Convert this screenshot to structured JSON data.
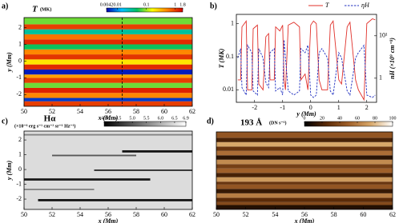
{
  "chart_data": [
    {
      "type": "heatmap",
      "panel": "a)",
      "title": "T",
      "units": "(MK)",
      "xlabel": "x (Mm)",
      "ylabel": "y (Mm)",
      "xlim": [
        50,
        62
      ],
      "xticks": [
        50,
        52,
        54,
        56,
        58,
        60,
        62
      ],
      "ylim": [
        -2.7,
        2.6
      ],
      "yticks": [
        -2,
        -1,
        0,
        1,
        2
      ],
      "clim": [
        0.0042,
        1.8
      ],
      "clog": true,
      "cticks": [
        0.0042,
        0.01,
        0.1,
        1,
        1.8
      ],
      "colormap": [
        "#0000b0",
        "#00c0ff",
        "#00c060",
        "#ffff00",
        "#ff8000",
        "#d00000"
      ],
      "vline": 57,
      "segments": [
        {
          "x": [
            50,
            62
          ],
          "y": [
            -2.7,
            -2.4
          ],
          "value": 1.0
        },
        {
          "x": [
            50,
            62
          ],
          "y": [
            -2.4,
            -2.2
          ],
          "value": 0.006
        },
        {
          "x": [
            50,
            62
          ],
          "y": [
            -2.2,
            -1.9
          ],
          "value": 0.5
        },
        {
          "x": [
            50,
            62
          ],
          "y": [
            -1.9,
            -1.6
          ],
          "value": 1.3
        },
        {
          "x": [
            50,
            62
          ],
          "y": [
            -1.6,
            -1.3
          ],
          "value": 0.08
        },
        {
          "x": [
            50,
            62
          ],
          "y": [
            -1.3,
            -1.0
          ],
          "value": 1.0
        },
        {
          "x": [
            50,
            62
          ],
          "y": [
            -1.0,
            -0.8
          ],
          "value": 0.4
        },
        {
          "x": [
            50,
            62
          ],
          "y": [
            -0.8,
            -0.5
          ],
          "value": 0.005
        },
        {
          "x": [
            50,
            62
          ],
          "y": [
            -0.5,
            -0.2
          ],
          "value": 1.2
        },
        {
          "x": [
            50,
            62
          ],
          "y": [
            -0.2,
            0.1
          ],
          "value": 0.2
        },
        {
          "x": [
            50,
            62
          ],
          "y": [
            0.1,
            0.4
          ],
          "value": 1.1
        },
        {
          "x": [
            50,
            62
          ],
          "y": [
            0.4,
            0.7
          ],
          "value": 0.5
        },
        {
          "x": [
            50,
            62
          ],
          "y": [
            0.7,
            1.0
          ],
          "value": 0.05
        },
        {
          "x": [
            50,
            62
          ],
          "y": [
            1.0,
            1.3
          ],
          "value": 1.2
        },
        {
          "x": [
            50,
            62
          ],
          "y": [
            1.3,
            1.6
          ],
          "value": 0.6
        },
        {
          "x": [
            50,
            62
          ],
          "y": [
            1.6,
            1.9
          ],
          "value": 0.03
        },
        {
          "x": [
            50,
            62
          ],
          "y": [
            1.9,
            2.2
          ],
          "value": 1.0
        },
        {
          "x": [
            50,
            62
          ],
          "y": [
            2.2,
            2.6
          ],
          "value": 0.08
        }
      ]
    },
    {
      "type": "line",
      "panel": "b)",
      "xlabel": "y (Mm)",
      "ylabel": "T (MK)",
      "y2label": "nH (×10⁹ cm⁻³)",
      "legend": "top",
      "xlim": [
        -2.65,
        2.35
      ],
      "xticks": [
        -2,
        -1,
        0,
        1,
        2
      ],
      "ylog": true,
      "ylim": [
        0.0042,
        1.9
      ],
      "yticks": [
        0.01,
        0.1,
        1
      ],
      "y2log": true,
      "y2lim": [
        0.27,
        32
      ],
      "y2ticks": [
        1,
        {
          "value": 10,
          "label": "10¹"
        }
      ],
      "x": [
        -2.6,
        -2.5,
        -2.45,
        -2.3,
        -2.25,
        -2.1,
        -2.05,
        -1.9,
        -1.85,
        -1.7,
        -1.6,
        -1.5,
        -1.45,
        -1.3,
        -1.25,
        -1.1,
        -1.0,
        -0.95,
        -0.9,
        -0.8,
        -0.6,
        -0.4,
        -0.35,
        -0.2,
        -0.1,
        0,
        0.1,
        0.2,
        0.3,
        0.4,
        0.6,
        0.7,
        0.8,
        1.0,
        1.1,
        1.3,
        1.4,
        1.6,
        1.7,
        1.9,
        2.0,
        2.2,
        2.3
      ],
      "series": [
        {
          "name": "T",
          "color": "#e0302a",
          "values": [
            0.02,
            0.02,
            0.8,
            1.2,
            0.01,
            0.01,
            0.7,
            0.9,
            0.015,
            0.01,
            0.4,
            0.5,
            0.02,
            0.02,
            0.8,
            0.6,
            0.9,
            0.02,
            0.01,
            0.9,
            1.1,
            0.8,
            0.02,
            0.03,
            0.01,
            0.9,
            1.2,
            1.0,
            0.02,
            0.01,
            0.01,
            0.9,
            1.2,
            0.02,
            0.015,
            0.8,
            1.1,
            0.02,
            0.01,
            0.005,
            1.0,
            1.4,
            1.3
          ]
        },
        {
          "name": "ηH",
          "color": "#2030c0",
          "axis": "y2",
          "dash": true,
          "values": [
            3,
            5,
            0.6,
            0.4,
            6,
            4,
            0.5,
            0.4,
            5,
            3,
            0.8,
            0.6,
            4,
            5,
            0.5,
            0.6,
            0.4,
            8,
            3,
            0.5,
            0.4,
            0.5,
            5,
            4,
            6,
            0.4,
            0.35,
            0.4,
            4,
            5,
            3,
            0.5,
            0.4,
            4,
            3,
            0.5,
            0.4,
            3,
            4,
            6,
            0.4,
            0.35,
            0.4
          ]
        }
      ]
    },
    {
      "type": "heatmap",
      "panel": "c)",
      "title": "Hα",
      "units": "(×10⁻⁶ erg s⁻¹ cm⁻² sr⁻¹ Hz⁻¹)",
      "xlabel": "x (Mm)",
      "ylabel": "y (Mm)",
      "xlim": [
        50,
        62
      ],
      "xticks": [
        50,
        52,
        54,
        56,
        58,
        60,
        62
      ],
      "ylim": [
        -2.7,
        2.6
      ],
      "yticks": [
        -2,
        -1,
        0,
        1,
        2
      ],
      "clim": [
        4,
        6.9
      ],
      "clog": false,
      "cticks": [
        {
          "value": 4,
          "label": "4.0"
        },
        4.5,
        {
          "value": 5,
          "label": "5.0"
        },
        5.5,
        {
          "value": 6,
          "label": "6.0"
        },
        6.5,
        6.9
      ],
      "colormap": [
        "#000000",
        "#ffffff"
      ],
      "segments": [
        {
          "x": [
            50,
            62
          ],
          "y": [
            -2.7,
            2.6
          ],
          "value": 6.5
        },
        {
          "x": [
            51,
            62
          ],
          "y": [
            -2.15,
            -2.0
          ],
          "value": 4.2
        },
        {
          "x": [
            50,
            59
          ],
          "y": [
            -0.75,
            -0.6
          ],
          "value": 4.3
        },
        {
          "x": [
            55,
            62
          ],
          "y": [
            -0.1,
            0.0
          ],
          "value": 4.5
        },
        {
          "x": [
            52,
            58
          ],
          "y": [
            0.9,
            1.0
          ],
          "value": 5.0
        },
        {
          "x": [
            57,
            62
          ],
          "y": [
            1.15,
            1.3
          ],
          "value": 4.2
        },
        {
          "x": [
            50,
            55
          ],
          "y": [
            -1.4,
            -1.3
          ],
          "value": 5.5
        },
        {
          "x": [
            50,
            62
          ],
          "y": [
            2.3,
            2.4
          ],
          "value": 5.5
        }
      ]
    },
    {
      "type": "heatmap",
      "panel": "d)",
      "title": "193 Å",
      "units": "(DN s⁻¹)",
      "xlabel": "x (Mm)",
      "xlim": [
        50,
        62
      ],
      "xticks": [
        50,
        52,
        54,
        56,
        58,
        60,
        62
      ],
      "ylim": [
        -2.7,
        2.6
      ],
      "clim": [
        0,
        100
      ],
      "clog": false,
      "cticks": [
        0,
        20,
        40,
        60,
        80,
        100
      ],
      "colormap": [
        "#000000",
        "#5a2a08",
        "#a0602a",
        "#d8a86a",
        "#ffffff"
      ],
      "segments": [
        {
          "x": [
            50,
            62
          ],
          "y": [
            -2.7,
            -2.4
          ],
          "value": 10
        },
        {
          "x": [
            50,
            62
          ],
          "y": [
            -2.4,
            -2.2
          ],
          "value": 40
        },
        {
          "x": [
            50,
            62
          ],
          "y": [
            -2.2,
            -1.9
          ],
          "value": 25
        },
        {
          "x": [
            50,
            62
          ],
          "y": [
            -1.9,
            -1.6
          ],
          "value": 60
        },
        {
          "x": [
            50,
            62
          ],
          "y": [
            -1.6,
            -1.3
          ],
          "value": 15
        },
        {
          "x": [
            50,
            62
          ],
          "y": [
            -1.3,
            -1.0
          ],
          "value": 45
        },
        {
          "x": [
            50,
            62
          ],
          "y": [
            -1.0,
            -0.8
          ],
          "value": 30
        },
        {
          "x": [
            50,
            62
          ],
          "y": [
            -0.8,
            -0.5
          ],
          "value": 70
        },
        {
          "x": [
            50,
            62
          ],
          "y": [
            -0.5,
            -0.2
          ],
          "value": 20
        },
        {
          "x": [
            50,
            62
          ],
          "y": [
            -0.2,
            0.1
          ],
          "value": 50
        },
        {
          "x": [
            50,
            62
          ],
          "y": [
            0.1,
            0.4
          ],
          "value": 35
        },
        {
          "x": [
            50,
            62
          ],
          "y": [
            0.4,
            0.7
          ],
          "value": 65
        },
        {
          "x": [
            50,
            62
          ],
          "y": [
            0.7,
            1.0
          ],
          "value": 12
        },
        {
          "x": [
            50,
            62
          ],
          "y": [
            1.0,
            1.3
          ],
          "value": 55
        },
        {
          "x": [
            50,
            62
          ],
          "y": [
            1.3,
            1.6
          ],
          "value": 30
        },
        {
          "x": [
            50,
            62
          ],
          "y": [
            1.6,
            1.9
          ],
          "value": 75
        },
        {
          "x": [
            50,
            62
          ],
          "y": [
            1.9,
            2.2
          ],
          "value": 20
        },
        {
          "x": [
            50,
            62
          ],
          "y": [
            2.2,
            2.6
          ],
          "value": 45
        }
      ]
    }
  ]
}
